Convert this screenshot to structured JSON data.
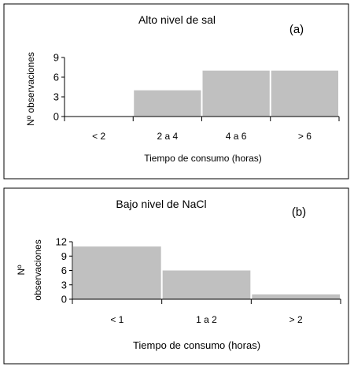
{
  "chart_data": [
    {
      "type": "bar",
      "title": "Alto nivel de sal",
      "panel_label": "(a)",
      "ylabel": "Nº observaciones",
      "xlabel": "Tiempo de consumo (horas)",
      "categories": [
        "< 2",
        "2 a 4",
        "4 a 6",
        "> 6"
      ],
      "values": [
        0,
        4,
        7,
        7
      ],
      "yticks": [
        0,
        3,
        6,
        9
      ],
      "ylim": [
        0,
        9
      ],
      "grid": false,
      "bar_color": "#c0c0c0"
    },
    {
      "type": "bar",
      "title": "Bajo nivel de NaCl",
      "panel_label": "(b)",
      "ylabel_lines": [
        "Nº",
        "observaciones"
      ],
      "xlabel": "Tiempo de consumo (horas)",
      "categories": [
        "< 1",
        "1 a 2",
        "> 2"
      ],
      "values": [
        11,
        6,
        1
      ],
      "yticks": [
        0,
        3,
        6,
        9,
        12
      ],
      "ylim": [
        0,
        12
      ],
      "grid": false,
      "bar_color": "#c0c0c0"
    }
  ]
}
